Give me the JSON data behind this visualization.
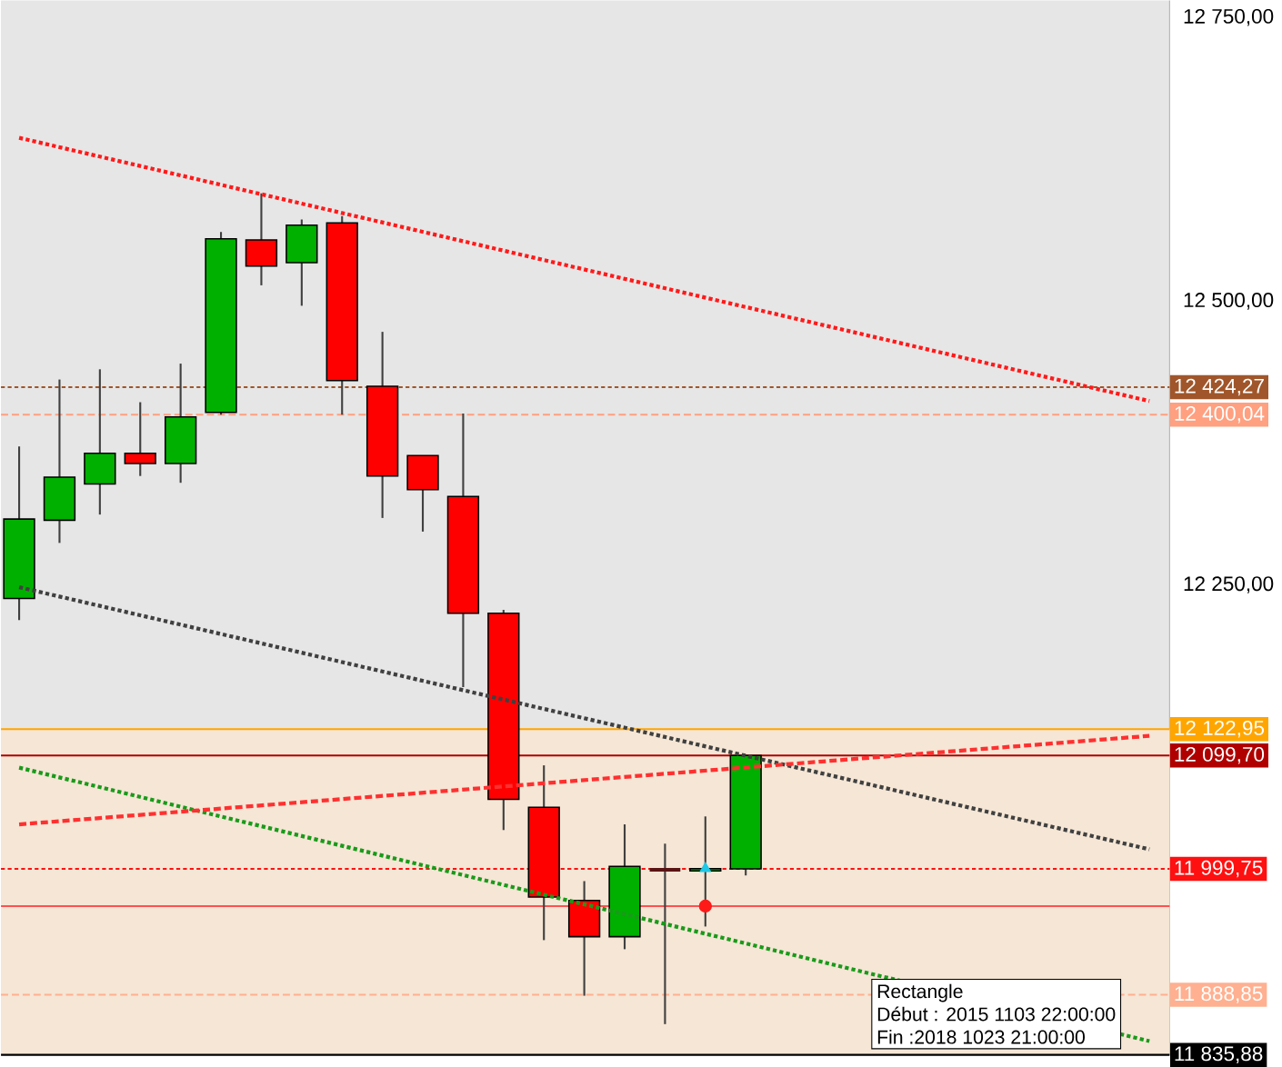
{
  "chart_data": {
    "type": "candlestick",
    "categories": [
      null,
      null,
      null,
      null,
      null,
      null,
      null,
      null,
      null,
      null,
      null,
      null,
      null,
      null,
      null,
      null,
      null,
      null,
      null,
      null,
      null,
      null,
      null,
      null,
      null,
      null,
      null,
      null,
      null
    ],
    "ohlc": [
      [
        12238,
        12372,
        12219,
        12308
      ],
      [
        12307,
        12431,
        12287,
        12345
      ],
      [
        12339,
        12440,
        12312,
        12366
      ],
      [
        12366,
        12411,
        12346,
        12357
      ],
      [
        12357,
        12445,
        12340,
        12398
      ],
      [
        12402,
        12561,
        12400,
        12555
      ],
      [
        12554,
        12595,
        12514,
        12531
      ],
      [
        12534,
        12572,
        12496,
        12567
      ],
      [
        12569,
        12575,
        12400,
        12430
      ],
      [
        12425,
        12473,
        12309,
        12346
      ],
      [
        12364,
        12364,
        12297,
        12334
      ],
      [
        12328,
        12401,
        12160,
        12225
      ],
      [
        12225,
        12228,
        12034,
        12061
      ],
      [
        12054,
        12091,
        11937,
        11975
      ],
      [
        11972,
        11989,
        11888,
        11940
      ],
      [
        11940,
        12039,
        11929,
        12002
      ],
      [
        11999,
        12022,
        11863,
        11999
      ],
      [
        11998,
        12046,
        11949,
        12000
      ],
      [
        11999.75,
        12099.7,
        11994,
        12099.7
      ],
      null,
      null,
      null,
      null,
      null,
      null,
      null,
      null,
      null,
      null
    ],
    "series": [
      {
        "type": "line",
        "color": "#ff1a1a",
        "line_style": "dotted",
        "values": [
          12644,
          null,
          null,
          null,
          null,
          null,
          null,
          null,
          null,
          null,
          null,
          null,
          null,
          null,
          null,
          null,
          null,
          null,
          null,
          null,
          null,
          null,
          null,
          null,
          null,
          null,
          null,
          null,
          12412
        ]
      },
      {
        "type": "line",
        "color": "#404040",
        "line_style": "dotted",
        "values": [
          12248,
          null,
          null,
          null,
          null,
          null,
          null,
          null,
          null,
          null,
          null,
          null,
          null,
          null,
          null,
          null,
          null,
          null,
          null,
          null,
          null,
          null,
          null,
          null,
          null,
          null,
          null,
          null,
          12017
        ]
      },
      {
        "type": "line",
        "color": "#1a9a1a",
        "line_style": "dotted",
        "values": [
          12089,
          null,
          null,
          null,
          null,
          null,
          null,
          null,
          null,
          null,
          null,
          null,
          null,
          null,
          null,
          null,
          null,
          null,
          null,
          null,
          null,
          null,
          null,
          null,
          null,
          null,
          null,
          null,
          11848
        ]
      },
      {
        "type": "line",
        "color": "#ff3030",
        "line_style": "dashed",
        "values": [
          12039,
          null,
          null,
          null,
          null,
          null,
          null,
          null,
          null,
          null,
          null,
          null,
          null,
          null,
          null,
          null,
          null,
          null,
          null,
          null,
          null,
          null,
          null,
          null,
          null,
          null,
          null,
          null,
          12117
        ]
      },
      {
        "type": "scatter",
        "color": "#20c8e8",
        "marker": "triangle",
        "values": [
          null,
          null,
          null,
          null,
          null,
          null,
          null,
          null,
          null,
          null,
          null,
          null,
          null,
          null,
          null,
          null,
          null,
          12000,
          null,
          null,
          null,
          null,
          null,
          null,
          null,
          null,
          null,
          null,
          null
        ]
      },
      {
        "type": "scatter",
        "color": "#ff1a1a",
        "marker": "circle",
        "values": [
          null,
          null,
          null,
          null,
          null,
          null,
          null,
          null,
          null,
          null,
          null,
          null,
          null,
          null,
          null,
          null,
          null,
          11967,
          null,
          null,
          null,
          null,
          null,
          null,
          null,
          null,
          null,
          null,
          null
        ]
      }
    ],
    "ylim": [
      11835.88,
      12765
    ],
    "yticks": [
      {
        "value": 12750,
        "label": "12 750,00"
      },
      {
        "value": 12500,
        "label": "12 500,00"
      },
      {
        "value": 12250,
        "label": "12 250,00"
      }
    ],
    "tick_labels": "y",
    "bands": [
      {
        "axis": "y",
        "from": 11835.88,
        "to": 12122.95,
        "color": "#f5e6d5"
      }
    ],
    "ref_lines": [
      {
        "axis": "y",
        "value": 12424.27,
        "label": "12 424,27",
        "color": "#a0562a",
        "line_style": "dotted"
      },
      {
        "axis": "y",
        "value": 12400.04,
        "label": "12 400,04",
        "color": "#ffa080",
        "line_style": "dashed"
      },
      {
        "axis": "y",
        "value": 12122.95,
        "label": "12 122,95",
        "color": "#ffa500",
        "line_style": "solid"
      },
      {
        "axis": "y",
        "value": 12099.7,
        "label": "12 099,70",
        "color": "#b00000",
        "line_style": "solid"
      },
      {
        "axis": "y",
        "value": 11999.75,
        "label": "11 999,75",
        "color": "#ff1010",
        "line_style": "dotted"
      },
      {
        "axis": "y",
        "value": 11967,
        "color": "#ff5050",
        "line_style": "solid"
      },
      {
        "axis": "y",
        "value": 11888.85,
        "label": "11 888,85",
        "color": "#ffb090",
        "line_style": "dashed"
      },
      {
        "axis": "y",
        "value": 11835.88,
        "label": "11 835,88",
        "color": "#000000",
        "line_style": "solid"
      }
    ],
    "annotations": [
      "Rectangle",
      "Début : 2015 1103 22:00:00",
      "Fin :2018 1023 21:00:00"
    ]
  }
}
